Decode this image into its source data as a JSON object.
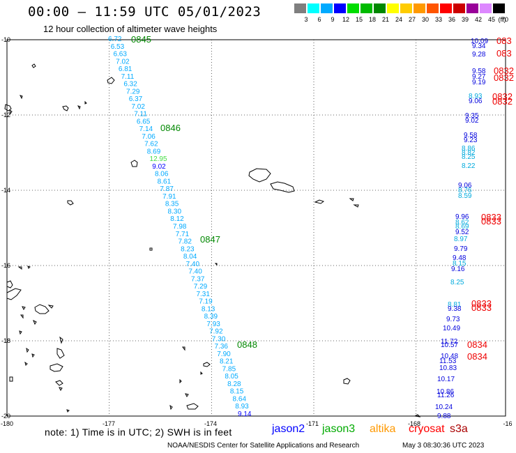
{
  "title": "00:00 – 11:59 UTC 05/01/2023",
  "subtitle": "12 hour collection of altimeter wave heights",
  "legend": {
    "unit": "(ft)",
    "bins": [
      {
        "label": "3",
        "color": "#7f7f7f"
      },
      {
        "label": "6",
        "color": "#00ffff"
      },
      {
        "label": "9",
        "color": "#00aaff"
      },
      {
        "label": "12",
        "color": "#0000ff"
      },
      {
        "label": "15",
        "color": "#00dd00"
      },
      {
        "label": "18",
        "color": "#00bb00"
      },
      {
        "label": "21",
        "color": "#008800"
      },
      {
        "label": "24",
        "color": "#ffff00"
      },
      {
        "label": "27",
        "color": "#ffcc00"
      },
      {
        "label": "30",
        "color": "#ff9900"
      },
      {
        "label": "33",
        "color": "#ff5500"
      },
      {
        "label": "36",
        "color": "#ff0000"
      },
      {
        "label": "39",
        "color": "#cc0000"
      },
      {
        "label": "42",
        "color": "#990099"
      },
      {
        "label": "45",
        "color": "#dd88ff"
      },
      {
        "label": "70",
        "color": "#000000"
      }
    ]
  },
  "axes": {
    "lon_labels": [
      "-180",
      "-177",
      "-174",
      "-171",
      "-168",
      "-16"
    ],
    "lat_labels": [
      "-10",
      "-12",
      "-14",
      "-16",
      "-18",
      "-20"
    ]
  },
  "chart_data": {
    "type": "scatter",
    "x_range": [
      -180,
      -165.5
    ],
    "y_range": [
      -20,
      -10
    ],
    "track_west_labels": [
      "6.72",
      "6.53",
      "6.63",
      "7.02",
      "6.81",
      "7.11",
      "6.32",
      "7.29",
      "6.37",
      "7.02",
      "7.11",
      "6.65",
      "7.14",
      "7.06",
      "7.62",
      "8.69",
      "12.95",
      "9.02",
      "8.06",
      "8.61",
      "7.87",
      "7.91",
      "8.35",
      "8.30",
      "8.12",
      "7.98",
      "7.71",
      "7.82",
      "8.23",
      "8.04",
      "7.40",
      "7.40",
      "7.37",
      "7.29",
      "7.31",
      "7.19",
      "8.13",
      "8.39",
      "7.93",
      "7.92",
      "7.30",
      "7.36",
      "7.90",
      "8.21",
      "7.85",
      "8.05",
      "8.28",
      "8.15",
      "8.64",
      "8.93",
      "9.14"
    ],
    "track_west_times": [
      "0845",
      "0846",
      "0847",
      "0848"
    ],
    "track_east_labels": [
      "10.09",
      "9.34",
      "9.28",
      "9.58",
      "9.27",
      "9.19",
      "8.93",
      "9.06",
      "9.35",
      "9.02",
      "9.58",
      "9.23",
      "8.86",
      "8.82",
      "8.25",
      "8.22",
      "9.06",
      "8.76",
      "8.59",
      "9.96",
      "8.62",
      "8.69",
      "9.52",
      "8.97",
      "9.79",
      "9.48",
      "8.15",
      "9.16",
      "8.25",
      "8.81",
      "9.38",
      "9.73",
      "10.49",
      "11.72",
      "10.57",
      "10.48",
      "11.53",
      "10.83",
      "10.17",
      "10.86",
      "11.26",
      "10.24",
      "9.88"
    ],
    "track_east_times": [
      "083",
      "083",
      "0832",
      "0832",
      "0832",
      "0832",
      "0833",
      "0833",
      "0833",
      "0833",
      "0834",
      "0834"
    ]
  },
  "note": "note: 1) Time is in UTC; 2) SWH is in feet",
  "satellites": [
    {
      "name": "jason2",
      "color": "#0000ff"
    },
    {
      "name": "jason3",
      "color": "#00aa00"
    },
    {
      "name": "altika",
      "color": "#ff9900"
    },
    {
      "name": "cryosat",
      "color": "#ff0000"
    },
    {
      "name": "s3a",
      "color": "#aa0000"
    }
  ],
  "footer": "NOAA/NESDIS Center for Satellite Applications and Research",
  "footer_time": "May  3 08:30:36 UTC 2023"
}
